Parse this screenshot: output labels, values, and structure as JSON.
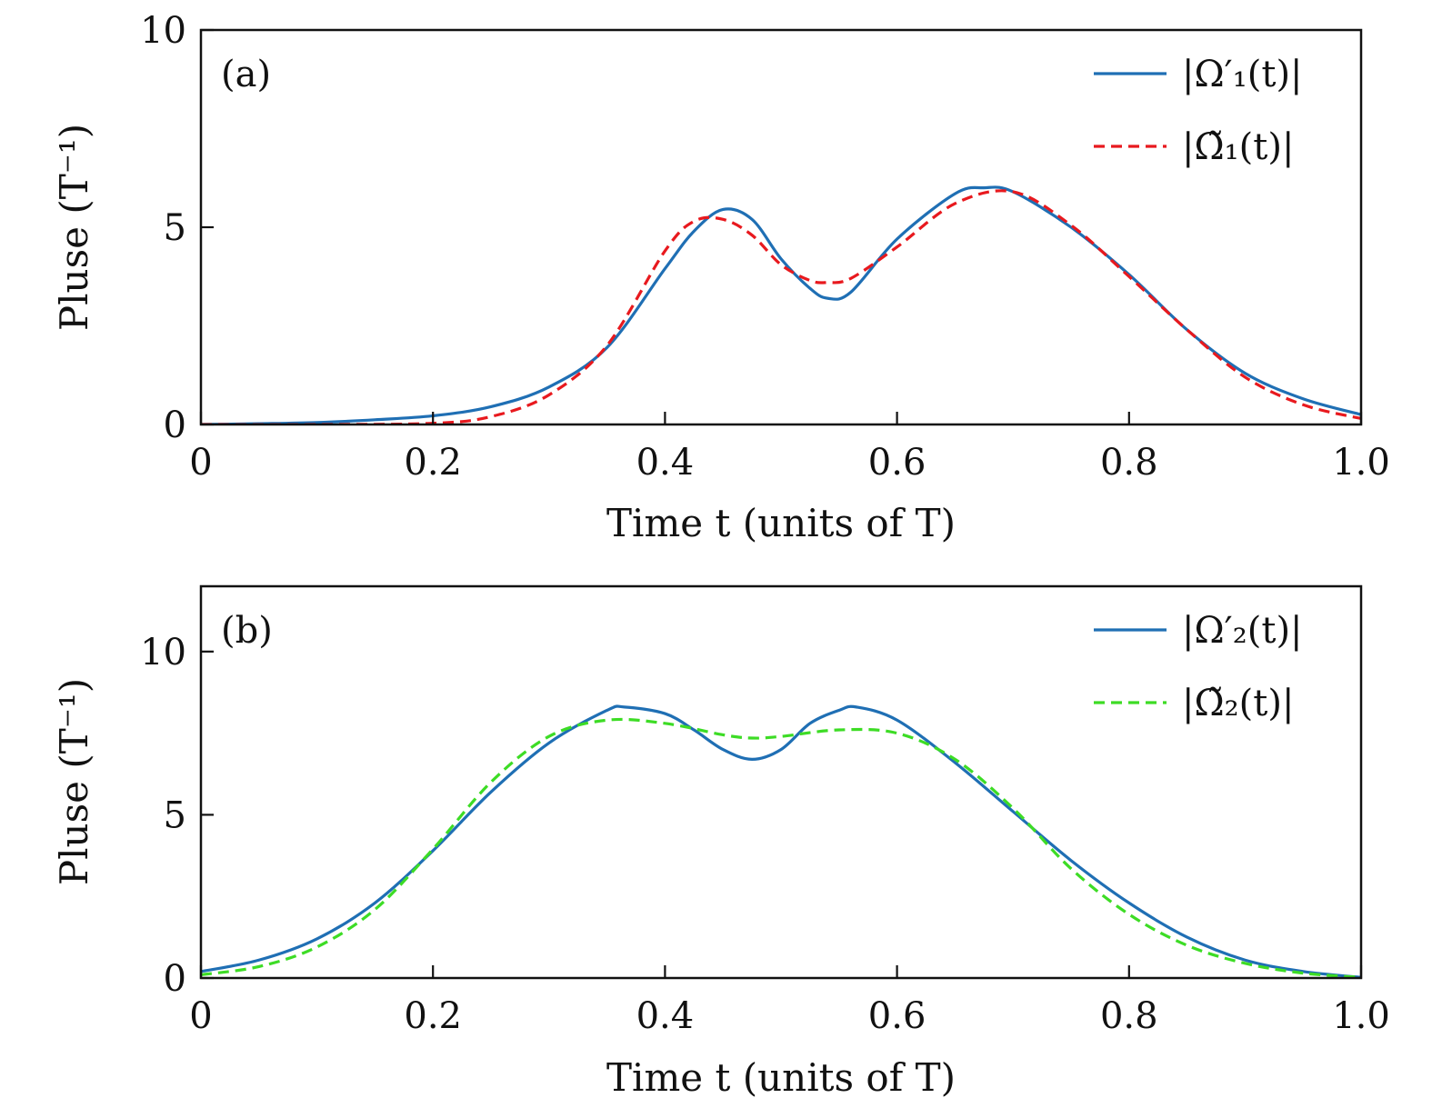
{
  "chart_data": [
    {
      "type": "line",
      "panel_label": "(a)",
      "xlabel": "Time t (units of T)",
      "ylabel": "Pluse (T⁻¹)",
      "xlim": [
        0,
        1.0
      ],
      "ylim": [
        0,
        10
      ],
      "xticks": [
        "0",
        "0.2",
        "0.4",
        "0.6",
        "0.8",
        "1.0"
      ],
      "yticks": [
        "0",
        "5",
        "10"
      ],
      "legend_position": "top-right",
      "grid": false,
      "series": [
        {
          "name": "|Ω′₁(t)|",
          "color": "#1f6fb4",
          "style": "solid",
          "x": [
            0,
            0.05,
            0.1,
            0.15,
            0.2,
            0.25,
            0.3,
            0.35,
            0.4,
            0.425,
            0.45,
            0.475,
            0.5,
            0.525,
            0.54,
            0.56,
            0.6,
            0.65,
            0.675,
            0.7,
            0.75,
            0.8,
            0.85,
            0.9,
            0.95,
            1.0
          ],
          "y": [
            0.0,
            0.02,
            0.05,
            0.12,
            0.22,
            0.45,
            0.95,
            1.95,
            3.95,
            4.9,
            5.45,
            5.2,
            4.2,
            3.45,
            3.2,
            3.35,
            4.7,
            5.85,
            6.0,
            5.9,
            5.0,
            3.8,
            2.4,
            1.3,
            0.65,
            0.25
          ]
        },
        {
          "name": "|Ω̃₁(t)|",
          "color": "#e8191e",
          "style": "dashed",
          "x": [
            0,
            0.1,
            0.2,
            0.25,
            0.3,
            0.35,
            0.4,
            0.425,
            0.45,
            0.475,
            0.5,
            0.525,
            0.54,
            0.56,
            0.6,
            0.65,
            0.7,
            0.75,
            0.8,
            0.85,
            0.9,
            0.95,
            1.0
          ],
          "y": [
            0.0,
            0.0,
            0.03,
            0.2,
            0.75,
            2.0,
            4.4,
            5.15,
            5.2,
            4.8,
            4.05,
            3.65,
            3.6,
            3.7,
            4.5,
            5.6,
            5.9,
            5.05,
            3.75,
            2.4,
            1.2,
            0.5,
            0.15
          ]
        }
      ]
    },
    {
      "type": "line",
      "panel_label": "(b)",
      "xlabel": "Time t (units of T)",
      "ylabel": "Pluse (T⁻¹)",
      "xlim": [
        0,
        1.0
      ],
      "ylim": [
        0,
        12
      ],
      "xticks": [
        "0",
        "0.2",
        "0.4",
        "0.6",
        "0.8",
        "1.0"
      ],
      "yticks": [
        "0",
        "5",
        "10"
      ],
      "legend_position": "top-right",
      "grid": false,
      "series": [
        {
          "name": "|Ω′₂(t)|",
          "color": "#1f6fb4",
          "style": "solid",
          "x": [
            0,
            0.05,
            0.1,
            0.15,
            0.2,
            0.25,
            0.3,
            0.35,
            0.365,
            0.4,
            0.425,
            0.45,
            0.475,
            0.5,
            0.525,
            0.55,
            0.565,
            0.6,
            0.65,
            0.7,
            0.75,
            0.8,
            0.85,
            0.9,
            0.95,
            1.0
          ],
          "y": [
            0.2,
            0.55,
            1.2,
            2.3,
            3.9,
            5.7,
            7.2,
            8.2,
            8.3,
            8.1,
            7.6,
            7.0,
            6.7,
            7.0,
            7.8,
            8.2,
            8.3,
            7.9,
            6.6,
            5.1,
            3.6,
            2.3,
            1.25,
            0.55,
            0.2,
            0.02
          ]
        },
        {
          "name": "|Ω̃₂(t)|",
          "color": "#3ddc25",
          "style": "dashed",
          "x": [
            0,
            0.05,
            0.1,
            0.15,
            0.2,
            0.25,
            0.3,
            0.35,
            0.4,
            0.45,
            0.475,
            0.5,
            0.55,
            0.6,
            0.65,
            0.7,
            0.75,
            0.8,
            0.85,
            0.9,
            0.95,
            1.0
          ],
          "y": [
            0.1,
            0.35,
            0.95,
            2.1,
            3.95,
            6.0,
            7.4,
            7.9,
            7.8,
            7.45,
            7.35,
            7.4,
            7.6,
            7.5,
            6.7,
            5.2,
            3.35,
            1.95,
            1.0,
            0.45,
            0.15,
            0.02
          ]
        }
      ]
    }
  ]
}
